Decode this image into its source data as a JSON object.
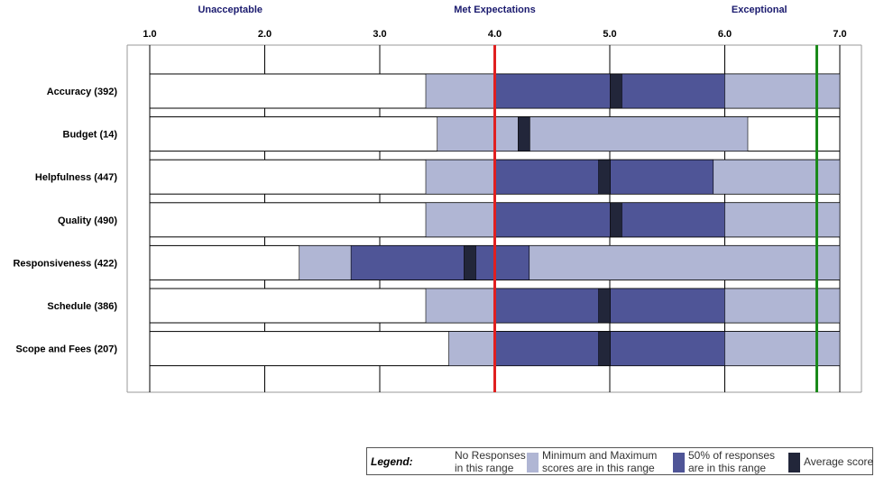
{
  "chart_data": {
    "type": "bar",
    "subtype": "horizontal range bars",
    "band_labels": [
      {
        "label": "Unacceptable",
        "at": 1.7
      },
      {
        "label": "Met Expectations",
        "at": 4.0
      },
      {
        "label": "Exceptional",
        "at": 6.3
      }
    ],
    "x_ticks": [
      "1.0",
      "2.0",
      "3.0",
      "4.0",
      "5.0",
      "6.0",
      "7.0"
    ],
    "xlim": [
      1.0,
      7.0
    ],
    "reference_lines": [
      {
        "value": 4.0,
        "color": "#e02020"
      },
      {
        "value": 6.8,
        "color": "#1a8a1a"
      }
    ],
    "categories": [
      "Accuracy (392)",
      "Budget (14)",
      "Helpfulness (447)",
      "Quality (490)",
      "Responsiveness (422)",
      "Schedule (386)",
      "Scope and Fees (207)"
    ],
    "series": [
      {
        "name": "Minimum and Maximum scores are in this range",
        "ranges": [
          [
            3.4,
            7.0
          ],
          [
            3.5,
            6.2
          ],
          [
            3.4,
            7.0
          ],
          [
            3.4,
            7.0
          ],
          [
            2.3,
            7.0
          ],
          [
            3.4,
            7.0
          ],
          [
            3.6,
            7.0
          ]
        ]
      },
      {
        "name": "50% of responses are in this range",
        "ranges": [
          [
            4.0,
            6.0
          ],
          null,
          [
            4.0,
            5.9
          ],
          [
            4.0,
            6.0
          ],
          [
            2.75,
            4.3
          ],
          [
            4.0,
            6.0
          ],
          [
            4.0,
            6.0
          ]
        ]
      },
      {
        "name": "Average score",
        "values": [
          5.05,
          4.25,
          4.95,
          5.05,
          3.78,
          4.95,
          4.95
        ]
      }
    ],
    "grid": true
  },
  "colors": {
    "no_response": "#ffffff",
    "min_max": "#b0b6d4",
    "fifty_pct": "#4f5597",
    "average": "#22263a",
    "grid": "#999999",
    "band_label": "#1a1a6e"
  },
  "legend": {
    "title": "Legend:",
    "items": [
      {
        "label": "No Responses in this range",
        "color": "#ffffff"
      },
      {
        "label": "Minimum and Maximum scores are in this range",
        "color": "#b0b6d4"
      },
      {
        "label": "50% of responses are in this range",
        "color": "#4f5597"
      },
      {
        "label": "Average score",
        "color": "#22263a"
      }
    ]
  }
}
